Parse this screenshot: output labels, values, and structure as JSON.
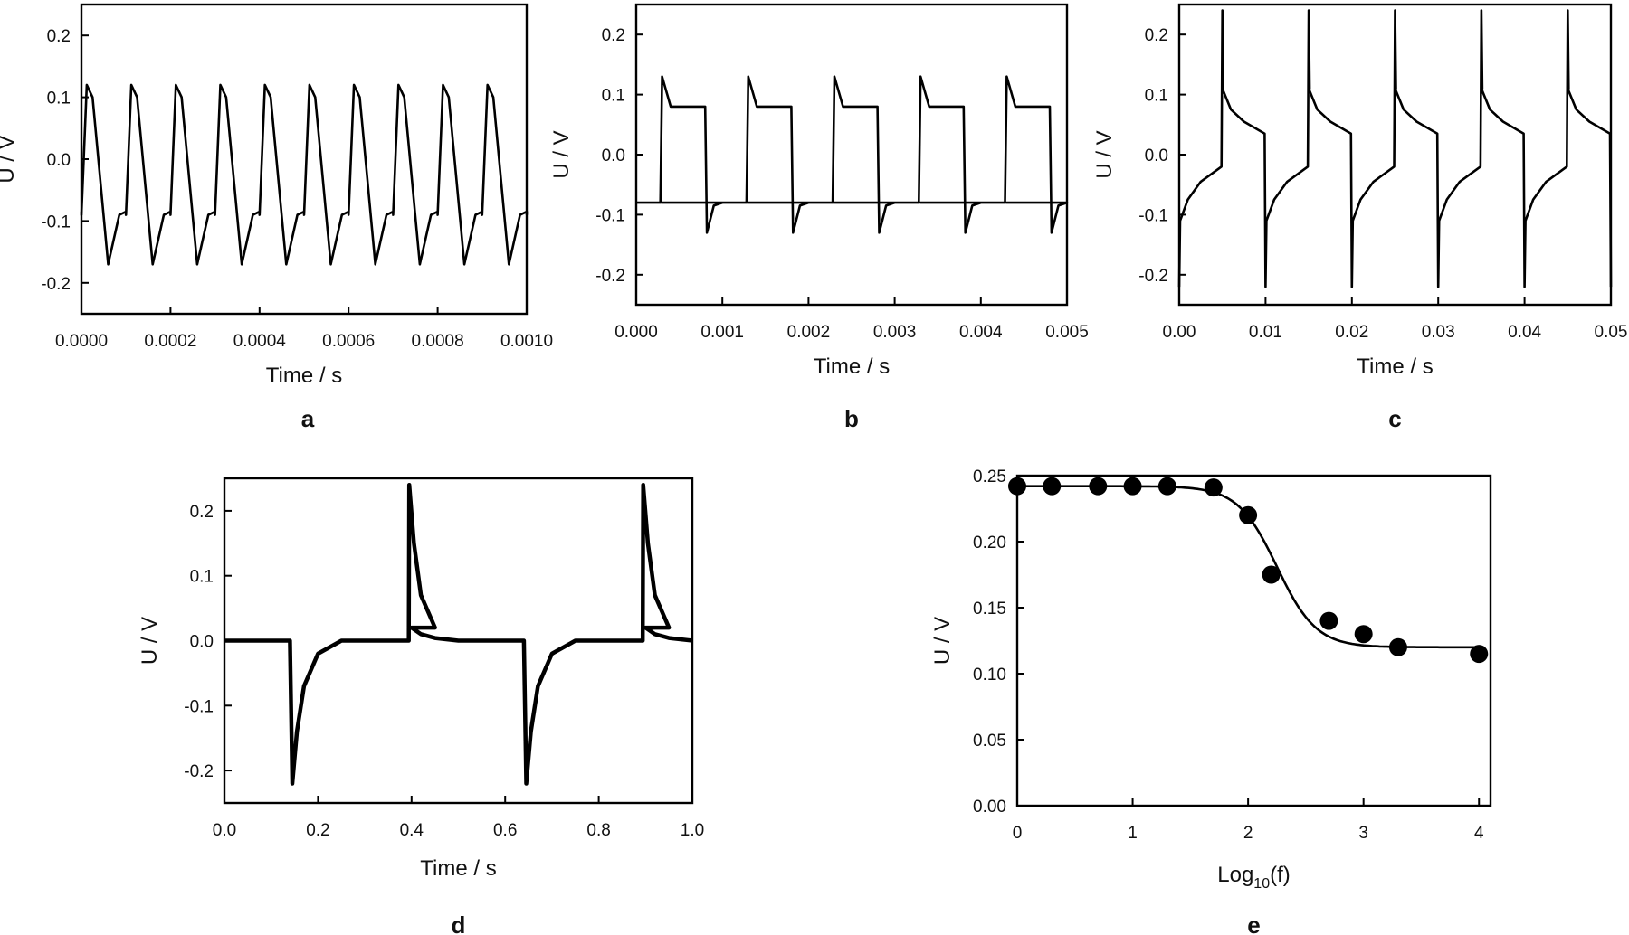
{
  "figure": {
    "panels": [
      "a",
      "b",
      "c",
      "d",
      "e"
    ]
  },
  "chart_data": [
    {
      "id": "a",
      "panel_label": "a",
      "type": "line",
      "xlabel": "Time / s",
      "ylabel": "U / V",
      "xlim": [
        0,
        0.001
      ],
      "ylim": [
        -0.25,
        0.25
      ],
      "xticks": [
        "0.0000",
        "0.0002",
        "0.0004",
        "0.0006",
        "0.0008",
        "0.0010"
      ],
      "xtick_values": [
        0,
        0.0002,
        0.0004,
        0.0006,
        0.0008,
        0.001
      ],
      "yticks": [
        "-0.2",
        "-0.1",
        "0.0",
        "0.1",
        "0.2"
      ],
      "ytick_values": [
        -0.2,
        -0.1,
        0,
        0.1,
        0.2
      ],
      "waveform": {
        "period": 0.0001,
        "start": 0,
        "points": [
          [
            0,
            -0.09
          ],
          [
            1.2e-05,
            0.12
          ],
          [
            2.5e-05,
            0.1
          ],
          [
            6e-05,
            -0.17
          ],
          [
            8.5e-05,
            -0.09
          ],
          [
            0.0001,
            -0.085
          ]
        ]
      }
    },
    {
      "id": "b",
      "panel_label": "b",
      "type": "line",
      "xlabel": "Time / s",
      "ylabel": "U / V",
      "xlim": [
        0,
        0.005
      ],
      "ylim": [
        -0.25,
        0.25
      ],
      "xticks": [
        "0.000",
        "0.001",
        "0.002",
        "0.003",
        "0.004",
        "0.005"
      ],
      "xtick_values": [
        0,
        0.001,
        0.002,
        0.003,
        0.004,
        0.005
      ],
      "yticks": [
        "-0.2",
        "-0.1",
        "0.0",
        "0.1",
        "0.2"
      ],
      "ytick_values": [
        -0.2,
        -0.1,
        0,
        0.1,
        0.2
      ],
      "waveform": {
        "period": 0.001,
        "start": -0.0007,
        "points": [
          [
            0,
            -0.08
          ],
          [
            0.00098,
            -0.08
          ],
          [
            0.001,
            0.13
          ],
          [
            0.0011,
            0.08
          ],
          [
            0.0015,
            0.08
          ],
          [
            0.00152,
            -0.13
          ],
          [
            0.0016,
            -0.085
          ],
          [
            0.0017,
            -0.08
          ]
        ]
      }
    },
    {
      "id": "c",
      "panel_label": "c",
      "type": "line",
      "xlabel": "Time / s",
      "ylabel": "U / V",
      "xlim": [
        0,
        0.05
      ],
      "ylim": [
        -0.25,
        0.25
      ],
      "xticks": [
        "0.00",
        "0.01",
        "0.02",
        "0.03",
        "0.04",
        "0.05"
      ],
      "xtick_values": [
        0,
        0.01,
        0.02,
        0.03,
        0.04,
        0.05
      ],
      "yticks": [
        "-0.2",
        "-0.1",
        "0.0",
        "0.1",
        "0.2"
      ],
      "ytick_values": [
        -0.2,
        -0.1,
        0,
        0.1,
        0.2
      ],
      "waveform": {
        "period": 0.01,
        "start": -0.005,
        "points": [
          [
            0,
            0.11
          ],
          [
            0.001,
            0.075
          ],
          [
            0.0025,
            0.055
          ],
          [
            0.0049,
            0.035
          ],
          [
            0.005,
            -0.22
          ],
          [
            0.0051,
            -0.11
          ],
          [
            0.006,
            -0.075
          ],
          [
            0.0075,
            -0.045
          ],
          [
            0.0099,
            -0.02
          ],
          [
            0.01,
            0.24
          ],
          [
            0.0101,
            0.11
          ]
        ]
      }
    },
    {
      "id": "d",
      "panel_label": "d",
      "type": "line",
      "xlabel": "Time / s",
      "ylabel": "U / V",
      "xlim": [
        0,
        1
      ],
      "ylim": [
        -0.25,
        0.25
      ],
      "xticks": [
        "0.0",
        "0.2",
        "0.4",
        "0.6",
        "0.8",
        "1.0"
      ],
      "xtick_values": [
        0,
        0.2,
        0.4,
        0.6,
        0.8,
        1.0
      ],
      "yticks": [
        "-0.2",
        "-0.1",
        "0.0",
        "0.1",
        "0.2"
      ],
      "ytick_values": [
        -0.2,
        -0.1,
        0,
        0.1,
        0.2
      ],
      "waveform": {
        "period": 0.5,
        "start": -0.1,
        "points": [
          [
            0,
            0.02
          ],
          [
            0.02,
            0.01
          ],
          [
            0.05,
            0.004
          ],
          [
            0.1,
            0.0
          ],
          [
            0.24,
            0.0
          ],
          [
            0.245,
            -0.22
          ],
          [
            0.255,
            -0.14
          ],
          [
            0.27,
            -0.07
          ],
          [
            0.3,
            -0.02
          ],
          [
            0.35,
            0.0
          ],
          [
            0.494,
            0.0
          ],
          [
            0.495,
            0.24
          ],
          [
            0.505,
            0.15
          ],
          [
            0.52,
            0.07
          ],
          [
            0.55,
            0.02
          ]
        ]
      }
    },
    {
      "id": "e",
      "panel_label": "e",
      "type": "scatter",
      "xlabel": "Log",
      "xlabel_sub": "10",
      "xlabel_tail": "(f)",
      "ylabel": "U / V",
      "xlim": [
        0,
        4.1
      ],
      "ylim": [
        0,
        0.25
      ],
      "xticks": [
        "0",
        "1",
        "2",
        "3",
        "4"
      ],
      "xtick_values": [
        0,
        1,
        2,
        3,
        4
      ],
      "yticks": [
        "0.00",
        "0.05",
        "0.10",
        "0.15",
        "0.20",
        "0.25"
      ],
      "ytick_values": [
        0,
        0.05,
        0.1,
        0.15,
        0.2,
        0.25
      ],
      "x": [
        0,
        0.3,
        0.7,
        1.0,
        1.3,
        1.7,
        2.0,
        2.2,
        2.7,
        3.0,
        3.3,
        4.0
      ],
      "y": [
        0.242,
        0.242,
        0.242,
        0.242,
        0.242,
        0.241,
        0.22,
        0.175,
        0.14,
        0.13,
        0.12,
        0.115
      ],
      "fit": {
        "type": "sigmoid",
        "top": 0.242,
        "bottom": 0.12,
        "x0": 2.25,
        "width": 0.17
      }
    }
  ]
}
